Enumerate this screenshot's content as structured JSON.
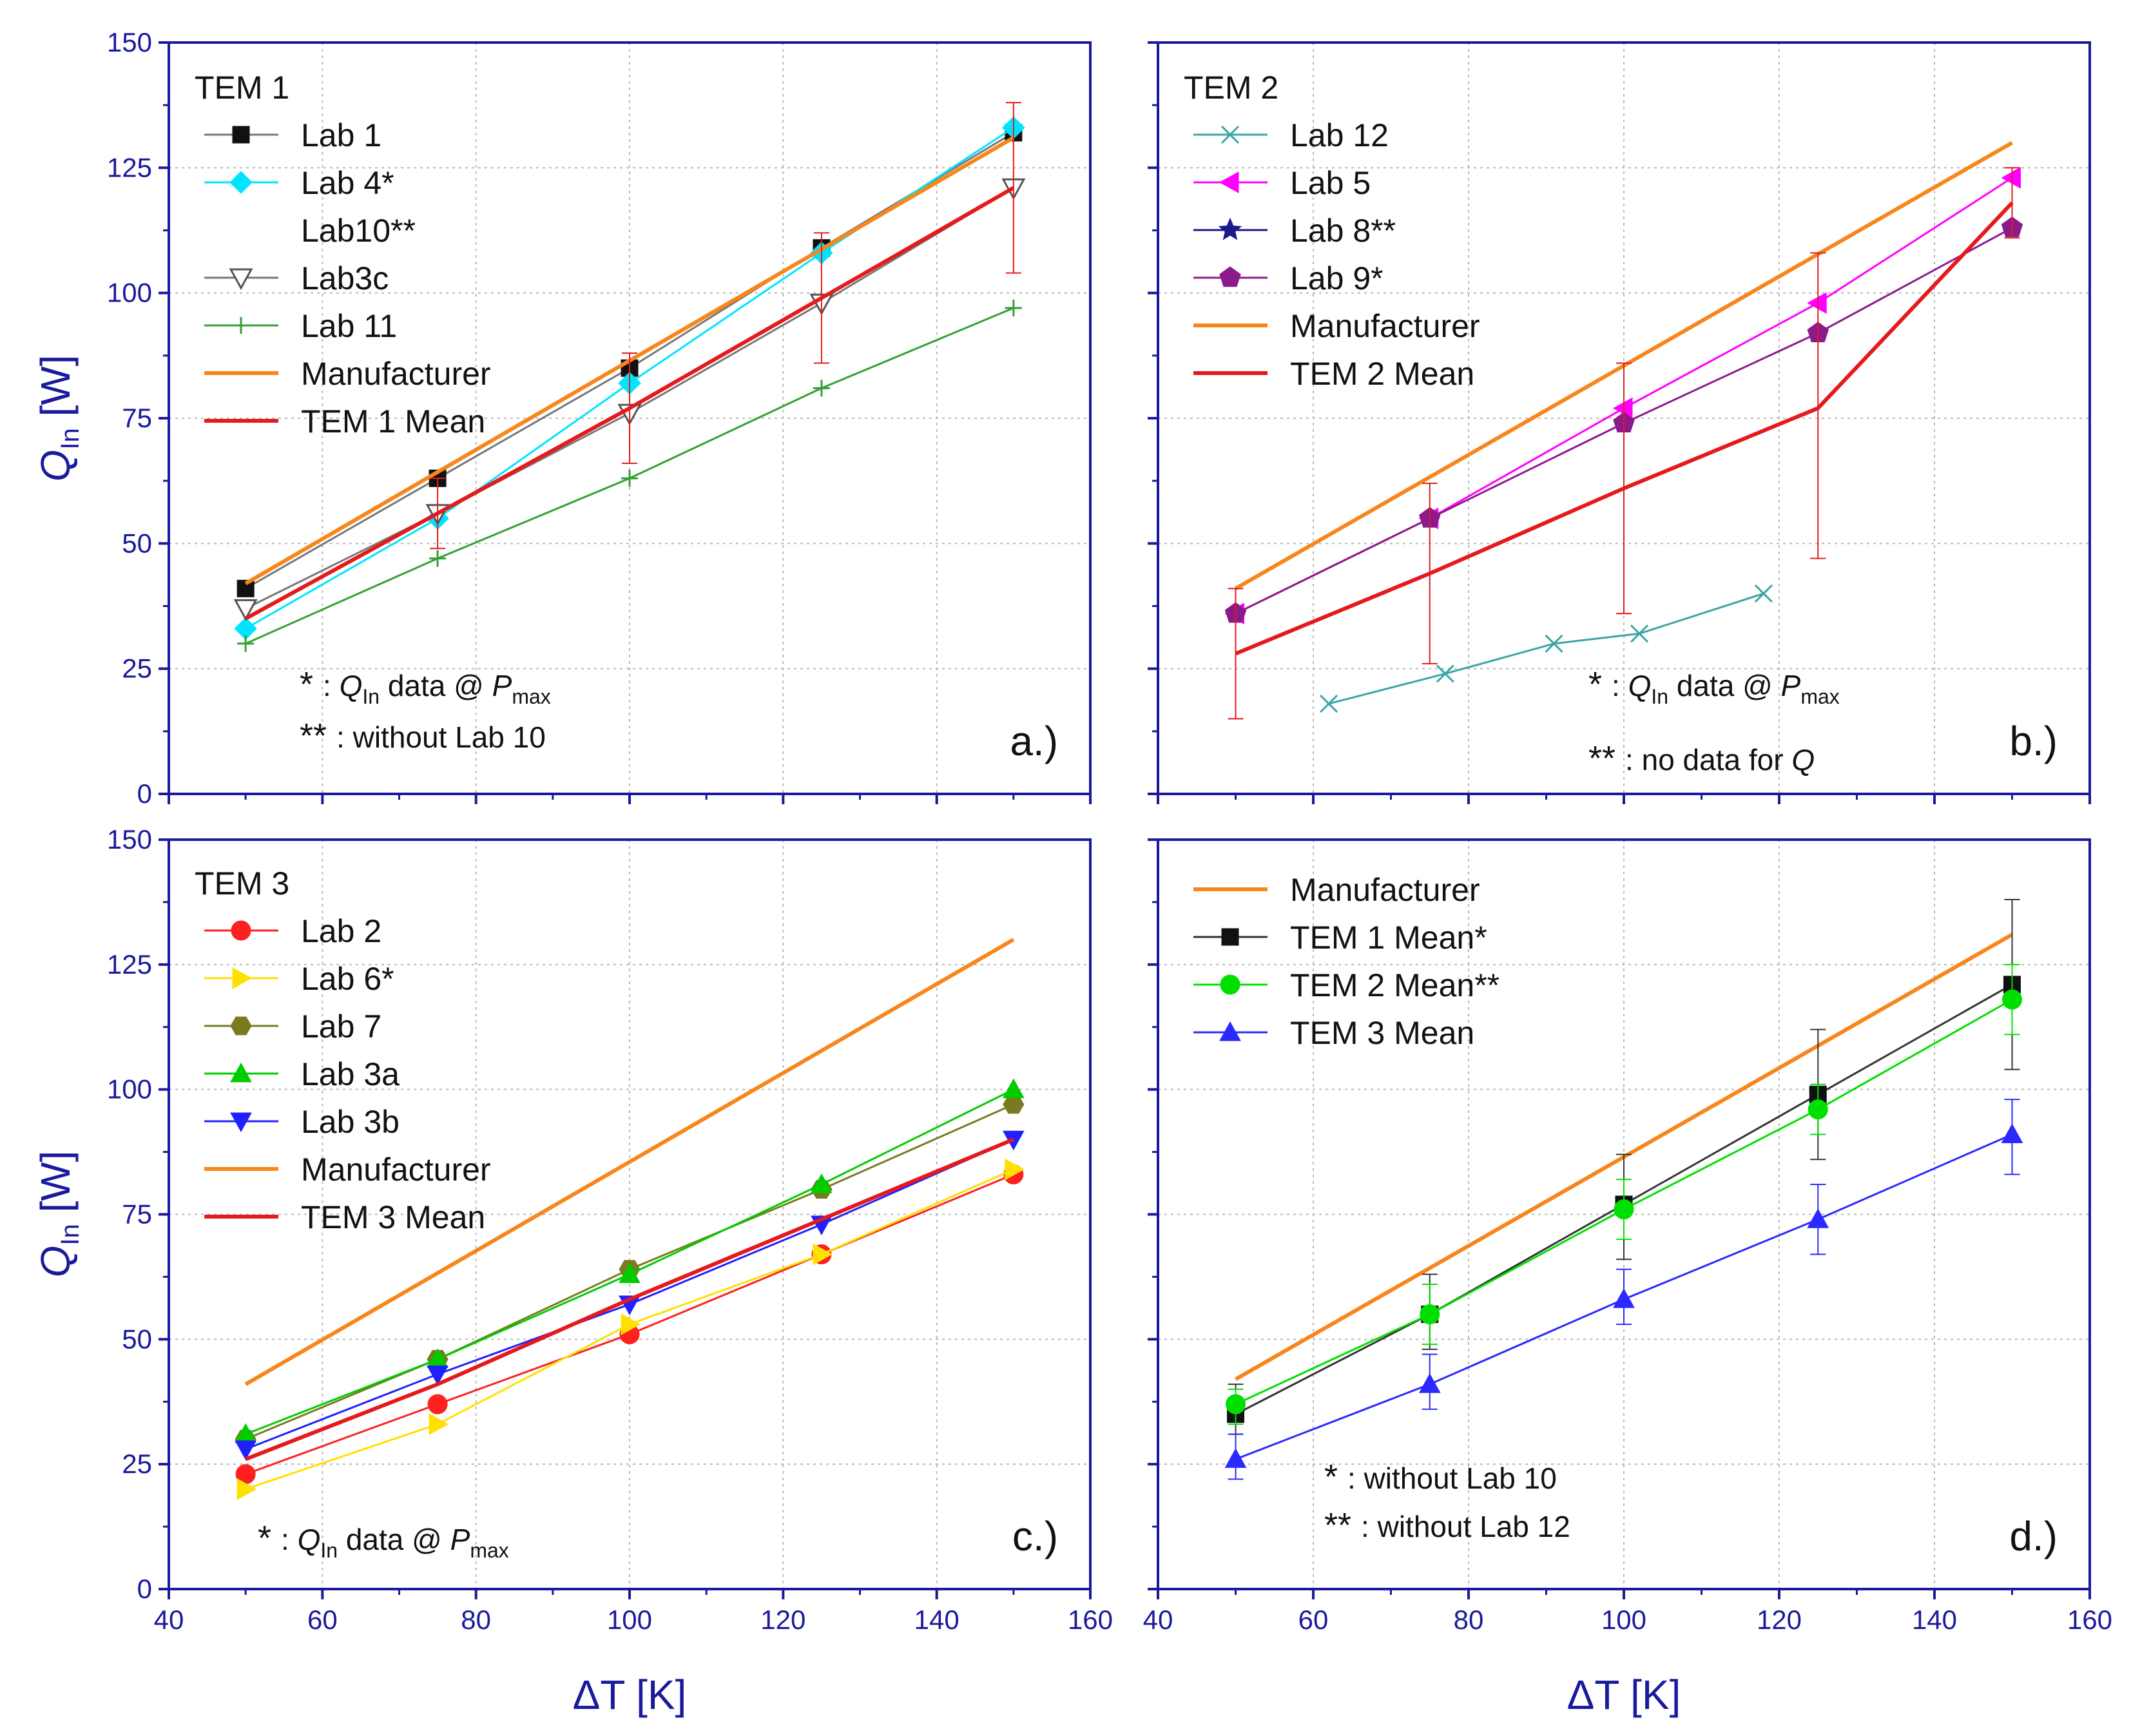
{
  "figure": {
    "x_axis_title_main": "ΔT [K]",
    "y_axis_title_q": "Q",
    "y_axis_title_sub": "In",
    "y_axis_title_unit": "[W]"
  },
  "chart_data": [
    {
      "type": "line",
      "panel": "a",
      "panel_label": "a.)",
      "group_title": "TEM 1",
      "xlim": [
        40,
        160
      ],
      "ylim": [
        0,
        150
      ],
      "x_ticks": [
        40,
        60,
        80,
        100,
        120,
        140,
        160
      ],
      "y_ticks": [
        0,
        25,
        50,
        75,
        100,
        125,
        150
      ],
      "series": [
        {
          "name": "Lab 1",
          "color": "#777777",
          "marker": "square",
          "x": [
            50,
            75,
            100,
            125,
            150
          ],
          "y": [
            41,
            63,
            85,
            109,
            132
          ]
        },
        {
          "name": "Lab 4*",
          "color": "#00e5ff",
          "marker": "diamond",
          "x": [
            50,
            75,
            100,
            125,
            150
          ],
          "y": [
            33,
            55,
            82,
            108,
            133
          ]
        },
        {
          "name": "Lab10**",
          "color": "#ffffff",
          "marker": "none",
          "x": [],
          "y": []
        },
        {
          "name": "Lab3c",
          "color": "#777777",
          "marker": "triangle-down-open",
          "x": [
            50,
            75,
            100,
            125,
            150
          ],
          "y": [
            37,
            56,
            76,
            98,
            121
          ]
        },
        {
          "name": "Lab 11",
          "color": "#33a033",
          "marker": "plus",
          "x": [
            50,
            75,
            100,
            125,
            150
          ],
          "y": [
            30,
            47,
            63,
            81,
            97
          ]
        },
        {
          "name": "Manufacturer",
          "color": "#f7861b",
          "marker": "none",
          "x": [
            50,
            150
          ],
          "y": [
            42,
            131
          ]
        },
        {
          "name": "TEM 1 Mean",
          "color": "#e41a1c",
          "marker": "none",
          "x": [
            50,
            75,
            100,
            125,
            150
          ],
          "y": [
            35,
            56,
            77,
            99,
            121
          ],
          "err_low": [
            null,
            49,
            66,
            86,
            104
          ],
          "err_high": [
            null,
            63,
            88,
            112,
            138
          ]
        }
      ],
      "notes": [
        {
          "star": "*",
          "prefix": ":",
          "q": "Q",
          "sub": "In",
          "mid": "data @",
          "p": "P",
          "psub": "max"
        },
        {
          "star": "**",
          "text": ": without Lab 10"
        }
      ]
    },
    {
      "type": "line",
      "panel": "b",
      "panel_label": "b.)",
      "group_title": "TEM 2",
      "xlim": [
        40,
        160
      ],
      "ylim": [
        0,
        150
      ],
      "x_ticks": [
        40,
        60,
        80,
        100,
        120,
        140,
        160
      ],
      "y_ticks": [
        0,
        25,
        50,
        75,
        100,
        125,
        150
      ],
      "series": [
        {
          "name": "Lab 12",
          "color": "#3aa6a6",
          "marker": "x",
          "x": [
            62,
            77,
            91,
            102,
            118
          ],
          "y": [
            18,
            24,
            30,
            32,
            40
          ]
        },
        {
          "name": "Lab 5",
          "color": "#ff00ff",
          "marker": "triangle-left",
          "x": [
            50,
            75,
            100,
            125,
            150
          ],
          "y": [
            36,
            55,
            77,
            98,
            123
          ]
        },
        {
          "name": "Lab 8**",
          "color": "#1a1a8a",
          "marker": "star",
          "x": [],
          "y": []
        },
        {
          "name": "Lab 9*",
          "color": "#8b1a8b",
          "marker": "pentagon",
          "x": [
            50,
            75,
            100,
            125,
            150
          ],
          "y": [
            36,
            55,
            74,
            92,
            113
          ]
        },
        {
          "name": "Manufacturer",
          "color": "#f7861b",
          "marker": "none",
          "x": [
            50,
            150
          ],
          "y": [
            41,
            130
          ]
        },
        {
          "name": "TEM 2 Mean",
          "color": "#e41a1c",
          "marker": "none",
          "x": [
            50,
            75,
            100,
            125,
            150
          ],
          "y": [
            28,
            44,
            61,
            77,
            118
          ],
          "err_low": [
            15,
            26,
            36,
            47,
            111
          ],
          "err_high": [
            41,
            62,
            86,
            108,
            125
          ]
        }
      ],
      "notes": [
        {
          "star": "*",
          "prefix": ":",
          "q": "Q",
          "sub": "In",
          "mid": "data @",
          "p": "P",
          "psub": "max"
        },
        {
          "star": "**",
          "prefix": ": no data for",
          "q": "Q"
        }
      ]
    },
    {
      "type": "line",
      "panel": "c",
      "panel_label": "c.)",
      "group_title": "TEM 3",
      "xlim": [
        40,
        160
      ],
      "ylim": [
        0,
        150
      ],
      "x_ticks": [
        40,
        60,
        80,
        100,
        120,
        140,
        160
      ],
      "y_ticks": [
        0,
        25,
        50,
        75,
        100,
        125,
        150
      ],
      "series": [
        {
          "name": "Lab 2",
          "color": "#ff2020",
          "marker": "circle",
          "x": [
            50,
            75,
            100,
            125,
            150
          ],
          "y": [
            23,
            37,
            51,
            67,
            83
          ]
        },
        {
          "name": "Lab 6*",
          "color": "#ffe000",
          "marker": "triangle-right",
          "x": [
            50,
            75,
            100,
            125,
            150
          ],
          "y": [
            20,
            33,
            53,
            67,
            84
          ]
        },
        {
          "name": "Lab 7",
          "color": "#7a7a20",
          "marker": "hexagon",
          "x": [
            50,
            75,
            100,
            125,
            150
          ],
          "y": [
            30,
            46,
            64,
            80,
            97
          ]
        },
        {
          "name": "Lab 3a",
          "color": "#00cc00",
          "marker": "triangle-up",
          "x": [
            50,
            75,
            100,
            125,
            150
          ],
          "y": [
            31,
            46,
            63,
            81,
            100
          ]
        },
        {
          "name": "Lab 3b",
          "color": "#2020ff",
          "marker": "triangle-down",
          "x": [
            50,
            75,
            100,
            125,
            150
          ],
          "y": [
            28,
            43,
            57,
            73,
            90
          ]
        },
        {
          "name": "Manufacturer",
          "color": "#f7861b",
          "marker": "none",
          "x": [
            50,
            150
          ],
          "y": [
            41,
            130
          ]
        },
        {
          "name": "TEM 3 Mean",
          "color": "#e41a1c",
          "marker": "none",
          "x": [
            50,
            75,
            100,
            125,
            150
          ],
          "y": [
            26,
            41,
            58,
            74,
            90
          ]
        }
      ],
      "notes": [
        {
          "star": "*",
          "prefix": ":",
          "q": "Q",
          "sub": "In",
          "mid": "data @",
          "p": "P",
          "psub": "max"
        }
      ]
    },
    {
      "type": "line",
      "panel": "d",
      "panel_label": "d.)",
      "group_title": "",
      "xlim": [
        40,
        160
      ],
      "ylim": [
        0,
        150
      ],
      "x_ticks": [
        40,
        60,
        80,
        100,
        120,
        140,
        160
      ],
      "y_ticks": [
        0,
        25,
        50,
        75,
        100,
        125,
        150
      ],
      "series": [
        {
          "name": "Manufacturer",
          "color": "#f7861b",
          "marker": "none",
          "x": [
            50,
            150
          ],
          "y": [
            42,
            131
          ]
        },
        {
          "name": "TEM 1 Mean*",
          "color": "#333333",
          "marker": "square",
          "x": [
            50,
            75,
            100,
            125,
            150
          ],
          "y": [
            35,
            55,
            77,
            99,
            121
          ],
          "err_low": [
            31,
            48,
            66,
            86,
            104
          ],
          "err_high": [
            41,
            63,
            87,
            112,
            138
          ]
        },
        {
          "name": "TEM 2 Mean**",
          "color": "#00e000",
          "marker": "circle",
          "x": [
            50,
            75,
            100,
            125,
            150
          ],
          "y": [
            37,
            55,
            76,
            96,
            118
          ],
          "err_low": [
            33,
            49,
            70,
            91,
            111
          ],
          "err_high": [
            40,
            61,
            82,
            101,
            125
          ]
        },
        {
          "name": "TEM 3 Mean",
          "color": "#2a2aff",
          "marker": "triangle-up",
          "x": [
            50,
            75,
            100,
            125,
            150
          ],
          "y": [
            26,
            41,
            58,
            74,
            91
          ],
          "err_low": [
            22,
            36,
            53,
            67,
            83
          ],
          "err_high": [
            31,
            47,
            64,
            81,
            98
          ]
        }
      ],
      "notes": [
        {
          "star": "*",
          "text": ": without Lab 10"
        },
        {
          "star": "**",
          "text": ": without Lab 12"
        }
      ]
    }
  ]
}
